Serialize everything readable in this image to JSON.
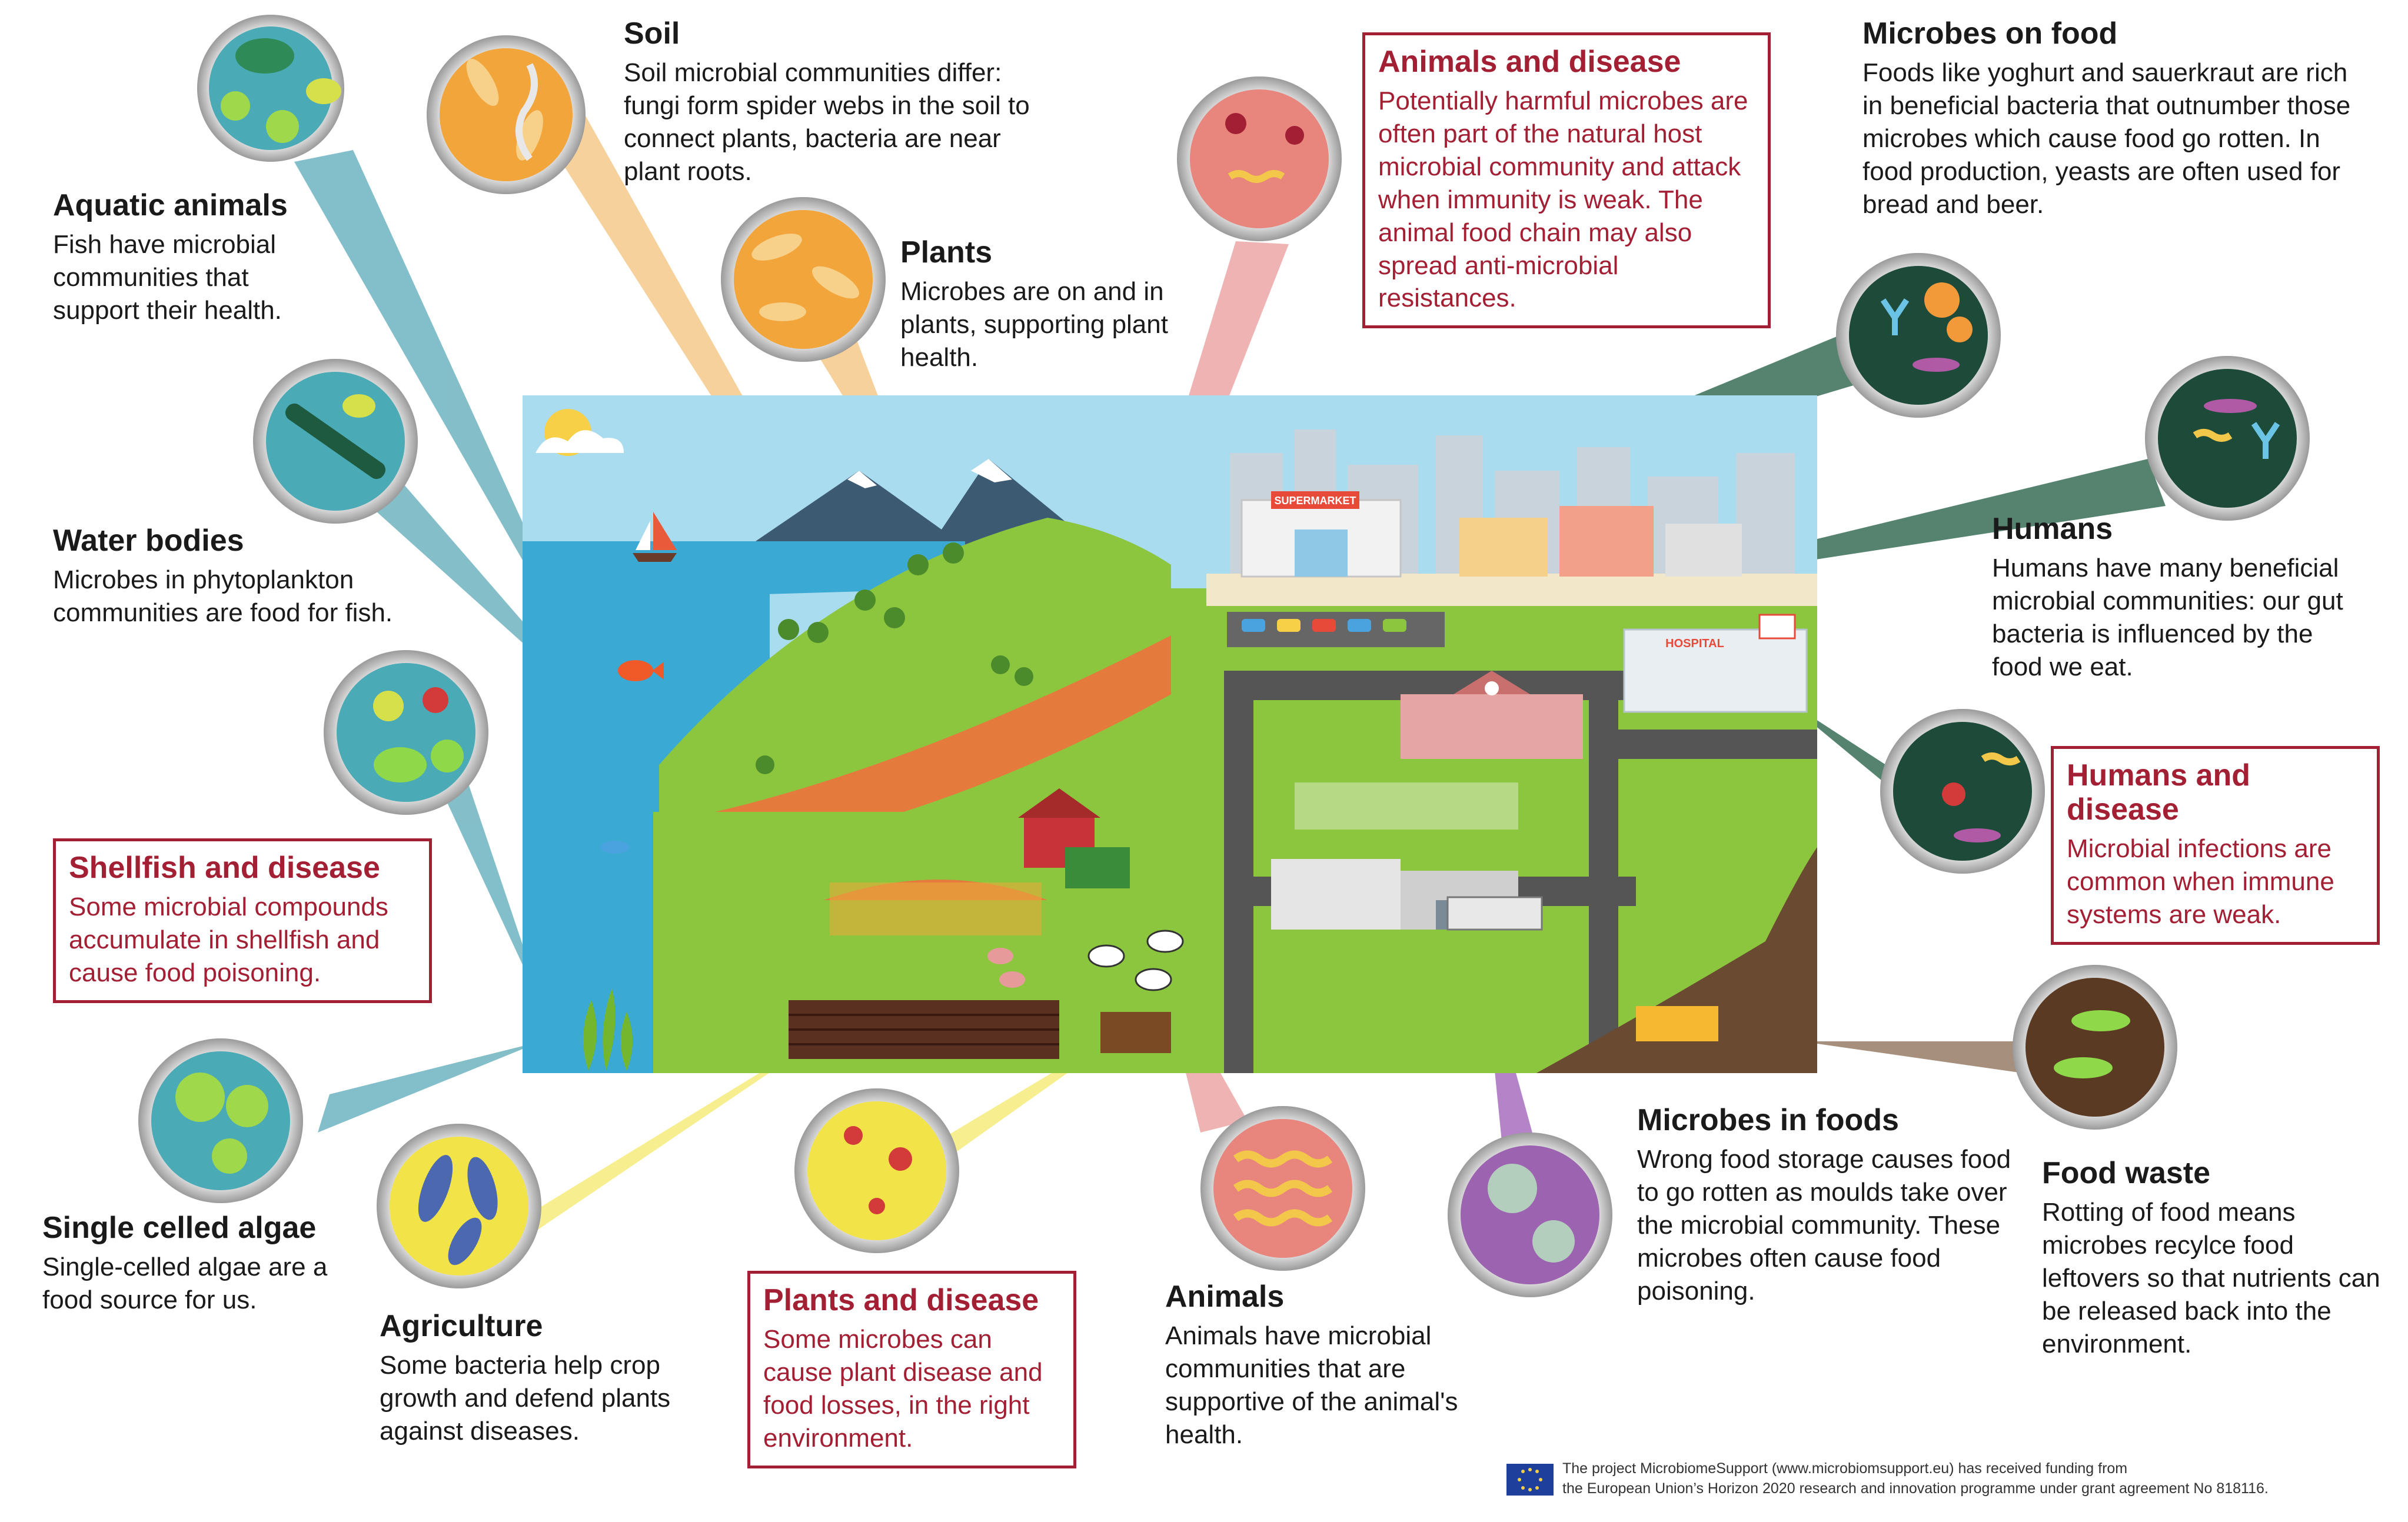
{
  "labels": {
    "soil": {
      "title": "Soil",
      "text": "Soil microbial communities differ: fungi form spider webs in the soil to connect plants, bacteria are near plant roots."
    },
    "aquatic": {
      "title": "Aquatic animals",
      "text": "Fish have microbial communities that support their health."
    },
    "plants": {
      "title": "Plants",
      "text": "Microbes are on and in plants, supporting plant health."
    },
    "water": {
      "title": "Water bodies",
      "text": "Microbes in phytoplankton communities are food for fish."
    },
    "shellfish": {
      "title": "Shellfish and disease",
      "text": "Some microbial compounds accumulate in shellfish and cause food poisoning."
    },
    "algae": {
      "title": "Single celled algae",
      "text": "Single-celled algae are a food source for us."
    },
    "agriculture": {
      "title": "Agriculture",
      "text": "Some bacteria help crop growth and defend plants against diseases."
    },
    "plants_disease": {
      "title": "Plants and disease",
      "text": "Some microbes can cause plant disease and food losses, in the right environment."
    },
    "animals": {
      "title": "Animals",
      "text": "Animals have microbial communities that are supportive of the animal's health."
    },
    "animals_disease": {
      "title": "Animals and disease",
      "text": "Potentially harmful microbes are often part of the natural host microbial community and attack when immunity is weak. The animal food chain may also spread anti-microbial resistances."
    },
    "food": {
      "title": "Microbes on food",
      "text": "Foods like yoghurt and sauerkraut are rich in beneficial bacteria that outnumber those microbes which cause food go rotten. In food production, yeasts are often used for bread and beer."
    },
    "humans": {
      "title": "Humans",
      "text": "Humans have many beneficial microbial communities: our gut bacteria is influenced by the food we eat."
    },
    "humans_disease": {
      "title": "Humans and disease",
      "text": "Microbial infections are common when immune systems are weak."
    },
    "in_foods": {
      "title": "Microbes in foods",
      "text": "Wrong food storage causes food to go rotten as moulds take over the microbial community. These microbes often cause food poisoning."
    },
    "waste": {
      "title": "Food waste",
      "text": "Rotting of food means microbes recylce food leftovers so that nutrients can be released back into the environment."
    }
  },
  "scene_text": {
    "supermarket": "SUPERMARKET",
    "hospital": "HOSPITAL"
  },
  "footer": {
    "line1": "The project MicrobiomeSupport (www.microbiomsupport.eu) has received funding from",
    "line2": "the European Union’s Horizon 2020 research and innovation programme under grant agreement No 818116."
  },
  "colors": {
    "disease_red": "#a31f34",
    "sky": "#a9dcef",
    "water": "#3aa9d3",
    "grass": "#8cc63f",
    "road": "#555555"
  }
}
